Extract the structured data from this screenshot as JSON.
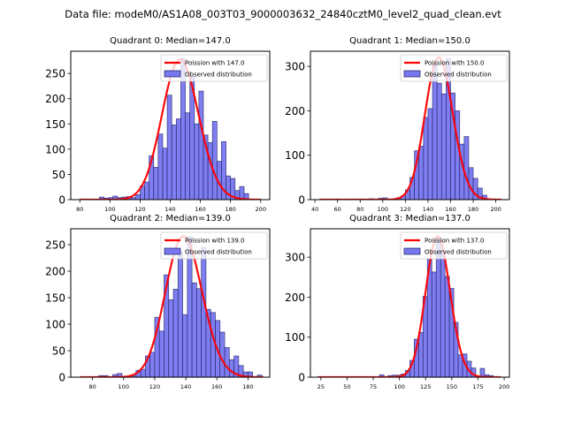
{
  "figure": {
    "title": "Data file: modeM0/AS1A08_003T03_9000003632_24840cztM0_level2_quad_clean.evt"
  },
  "colors": {
    "bar_fill": "#7777f0",
    "bar_edge": "#1a1a5e",
    "poisson_line": "#ff0000"
  },
  "chart_data": [
    {
      "type": "bar",
      "title": "Quadrant 0: Median=147.0",
      "xlabel": "",
      "ylabel": "",
      "xlim": [
        74,
        206
      ],
      "ylim": [
        0,
        294
      ],
      "xticks": [
        80,
        100,
        120,
        140,
        160,
        180,
        200
      ],
      "yticks": [
        0,
        50,
        100,
        150,
        200,
        250
      ],
      "legend_position": "top-right",
      "legend": [
        "Poission with 147.0",
        "Observed distribution"
      ],
      "bin_width": 3,
      "bins_start": [
        93,
        96,
        99,
        102,
        105,
        108,
        111,
        114,
        117,
        120,
        123,
        126,
        129,
        132,
        135,
        138,
        141,
        144,
        147,
        150,
        153,
        156,
        159,
        162,
        165,
        168,
        171,
        174,
        177,
        180,
        183,
        186,
        189
      ],
      "counts": [
        5,
        3,
        4,
        7,
        4,
        5,
        6,
        4,
        10,
        27,
        35,
        87,
        64,
        130,
        102,
        207,
        148,
        160,
        280,
        172,
        243,
        150,
        215,
        128,
        113,
        155,
        76,
        115,
        47,
        42,
        18,
        26,
        12
      ],
      "poisson_mean": 147.0,
      "poisson_peak": 278,
      "poisson_x_range": [
        80,
        200
      ]
    },
    {
      "type": "bar",
      "title": "Quadrant 1: Median=150.0",
      "xlabel": "",
      "ylabel": "",
      "xlim": [
        36,
        212
      ],
      "ylim": [
        0,
        334
      ],
      "xticks": [
        40,
        60,
        80,
        100,
        120,
        140,
        160,
        180,
        200
      ],
      "yticks": [
        0,
        100,
        200,
        300
      ],
      "legend_position": "top-right",
      "legend": [
        "Poission with 150.0",
        "Observed distribution"
      ],
      "bin_width": 4,
      "bins_start": [
        88,
        96,
        100,
        112,
        116,
        120,
        124,
        128,
        132,
        136,
        140,
        144,
        148,
        152,
        156,
        160,
        164,
        168,
        172,
        176,
        180,
        184,
        188
      ],
      "counts": [
        2,
        3,
        4,
        4,
        8,
        22,
        50,
        110,
        120,
        185,
        205,
        305,
        262,
        238,
        318,
        240,
        200,
        125,
        142,
        72,
        48,
        26,
        10
      ],
      "poisson_mean": 150.0,
      "poisson_peak": 320,
      "poisson_x_range": [
        44,
        205
      ]
    },
    {
      "type": "bar",
      "title": "Quadrant 2: Median=139.0",
      "xlabel": "",
      "ylabel": "",
      "xlim": [
        66,
        194
      ],
      "ylim": [
        0,
        280
      ],
      "xticks": [
        80,
        100,
        120,
        140,
        160,
        180
      ],
      "yticks": [
        0,
        50,
        100,
        150,
        200,
        250
      ],
      "legend_position": "top-right",
      "legend": [
        "Poission with 139.0",
        "Observed distribution"
      ],
      "bin_width": 3,
      "bins_start": [
        84,
        87,
        93,
        96,
        105,
        108,
        111,
        114,
        117,
        120,
        123,
        126,
        129,
        132,
        135,
        138,
        141,
        144,
        147,
        150,
        153,
        156,
        159,
        162,
        165,
        168,
        171,
        174,
        177,
        180,
        186
      ],
      "counts": [
        3,
        3,
        5,
        7,
        3,
        13,
        15,
        40,
        47,
        113,
        87,
        193,
        146,
        166,
        237,
        118,
        265,
        178,
        167,
        245,
        128,
        122,
        107,
        85,
        56,
        33,
        40,
        22,
        10,
        10,
        4
      ],
      "poisson_mean": 139.0,
      "poisson_peak": 266,
      "poisson_x_range": [
        72,
        190
      ]
    },
    {
      "type": "bar",
      "title": "Quadrant 3: Median=137.0",
      "xlabel": "",
      "ylabel": "",
      "xlim": [
        15,
        205
      ],
      "ylim": [
        0,
        371
      ],
      "xticks": [
        25,
        50,
        75,
        100,
        125,
        150,
        175,
        200
      ],
      "yticks": [
        0,
        100,
        200,
        300
      ],
      "legend_position": "top-right",
      "legend": [
        "Poission with 137.0",
        "Observed distribution"
      ],
      "bin_width": 4.2,
      "bins_start": [
        81,
        89,
        93,
        97,
        101.5,
        105.7,
        109.9,
        114.1,
        118.3,
        122.5,
        126.7,
        130.9,
        135.1,
        139.3,
        143.5,
        147.7,
        151.9,
        156.1,
        160.3,
        164.5,
        168.7,
        177.1,
        181.3,
        185.5
      ],
      "counts": [
        6,
        4,
        5,
        5,
        8,
        17,
        42,
        95,
        112,
        202,
        295,
        263,
        348,
        318,
        252,
        222,
        137,
        56,
        58,
        40,
        23,
        22,
        6,
        4
      ],
      "poisson_mean": 137.0,
      "poisson_peak": 352,
      "poisson_x_range": [
        22,
        197
      ]
    }
  ]
}
